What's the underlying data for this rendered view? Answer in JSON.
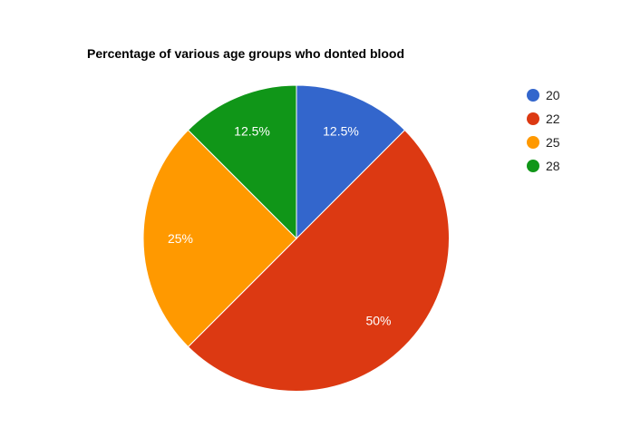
{
  "chart_data": {
    "type": "pie",
    "title": "Percentage of various age groups who donted blood",
    "categories": [
      "20",
      "22",
      "25",
      "28"
    ],
    "values": [
      12.5,
      50,
      25,
      12.5
    ],
    "labels": [
      "12.5%",
      "50%",
      "25%",
      "12.5%"
    ],
    "colors": [
      "#3366cc",
      "#dc3912",
      "#ff9900",
      "#109618"
    ],
    "legend": "right",
    "start_angle": "top",
    "direction": "clockwise"
  }
}
